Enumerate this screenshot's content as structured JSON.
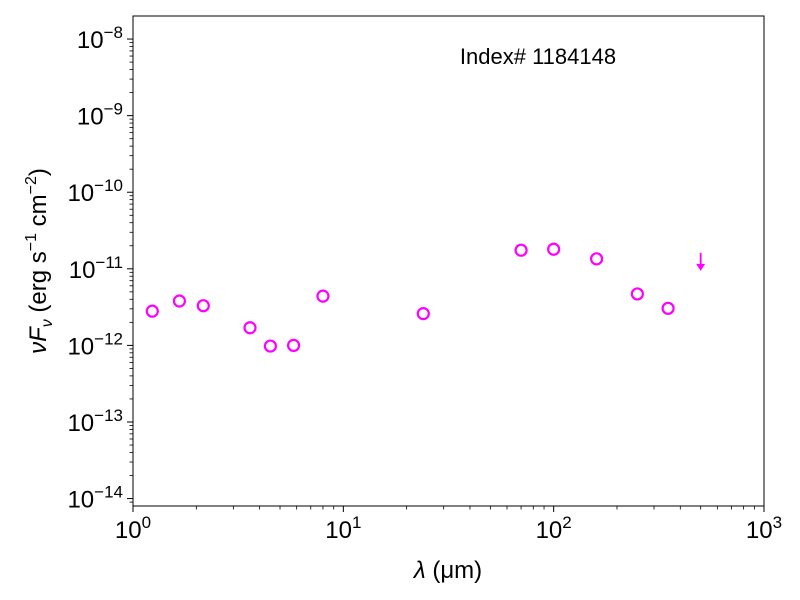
{
  "chart_data": {
    "type": "scatter",
    "title": "",
    "annotation": "Index# 1184148",
    "xlabel": {
      "prefix": "λ",
      "rest": " (μm)"
    },
    "ylabel": {
      "main": "νF",
      "sub": "ν",
      "units_a": " (erg s",
      "exp1": "−1",
      "units_b": " cm",
      "exp2": "−2",
      "close": ")"
    },
    "xscale": "log",
    "yscale": "log",
    "xlim": [
      1,
      1000
    ],
    "ylim": [
      8e-15,
      2e-08
    ],
    "grid": false,
    "marker_color": "#ff00ff",
    "x_ticks": [
      {
        "value": 1,
        "base": "10",
        "exp": "0"
      },
      {
        "value": 10,
        "base": "10",
        "exp": "1"
      },
      {
        "value": 100,
        "base": "10",
        "exp": "2"
      },
      {
        "value": 1000,
        "base": "10",
        "exp": "3"
      }
    ],
    "y_ticks": [
      {
        "value": 1e-14,
        "base": "10",
        "exp": "−14"
      },
      {
        "value": 1e-13,
        "base": "10",
        "exp": "−13"
      },
      {
        "value": 1e-12,
        "base": "10",
        "exp": "−12"
      },
      {
        "value": 1e-11,
        "base": "10",
        "exp": "−11"
      },
      {
        "value": 1e-10,
        "base": "10",
        "exp": "−10"
      },
      {
        "value": 1e-09,
        "base": "10",
        "exp": "−9"
      },
      {
        "value": 1e-08,
        "base": "10",
        "exp": "−8"
      }
    ],
    "points": [
      {
        "x": 1.235,
        "y": 2.8e-12
      },
      {
        "x": 1.662,
        "y": 3.8e-12
      },
      {
        "x": 2.159,
        "y": 3.3e-12
      },
      {
        "x": 3.6,
        "y": 1.7e-12
      },
      {
        "x": 4.5,
        "y": 9.8e-13
      },
      {
        "x": 5.8,
        "y": 1e-12
      },
      {
        "x": 8.0,
        "y": 4.4e-12
      },
      {
        "x": 24,
        "y": 2.6e-12
      },
      {
        "x": 70,
        "y": 1.75e-11
      },
      {
        "x": 100,
        "y": 1.8e-11
      },
      {
        "x": 160,
        "y": 1.35e-11
      },
      {
        "x": 250,
        "y": 4.7e-12
      },
      {
        "x": 350,
        "y": 3.05e-12
      }
    ],
    "upper_limits": [
      {
        "x": 500,
        "y": 1e-11
      }
    ]
  }
}
